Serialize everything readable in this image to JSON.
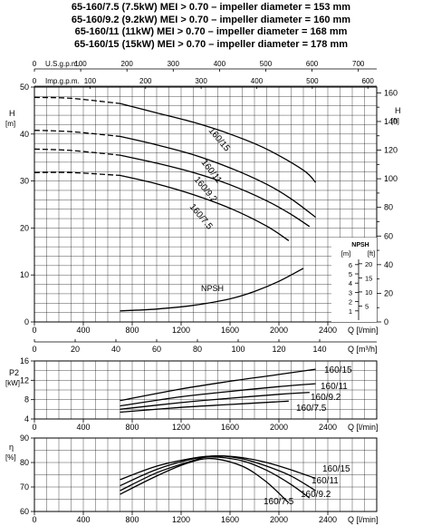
{
  "header_lines": [
    "65-160/7.5 (7.5kW) MEI > 0.70 – impeller diameter = 153 mm",
    "65-160/9.2 (9.2kW) MEI > 0.70 – impeller diameter = 160 mm",
    "65-160/11  (11kW) MEI > 0.70 – impeller diameter = 168 mm",
    "65-160/15  (15kW) MEI > 0.70 – impeller diameter = 178 mm"
  ],
  "chart_data": [
    {
      "id": "head",
      "type": "line",
      "xlabel": "Q [l/min]",
      "ylabel": "H [m]",
      "right_ylabel": "H [ft]",
      "xlim": [
        0,
        2800
      ],
      "ylim": [
        0,
        50
      ],
      "right_ylim_ft": [
        0,
        164
      ],
      "x_ticks": [
        0,
        400,
        800,
        1200,
        1600,
        2000,
        2400
      ],
      "y_ticks": [
        0,
        10,
        20,
        30,
        40,
        50
      ],
      "right_ticks": [
        0,
        20,
        40,
        60,
        80,
        100,
        120,
        140,
        160
      ],
      "bottom_axis2": {
        "label": "Q [m³/h]",
        "factor": 16.6667,
        "ticks": [
          0,
          20,
          40,
          60,
          80,
          100,
          120,
          140
        ]
      },
      "top_axis1": {
        "label": "Imp.g.p.m.",
        "factor": 4.546,
        "ticks": [
          0,
          100,
          200,
          300,
          400,
          500,
          600
        ]
      },
      "top_axis2": {
        "label": "U.S.g.p.m.",
        "factor": 3.785,
        "ticks": [
          0,
          100,
          200,
          300,
          400,
          500,
          600,
          700
        ]
      },
      "grid": true,
      "series": [
        {
          "name": "160/15",
          "dashed_x": [
            0,
            300,
            700
          ],
          "x": [
            700,
            1000,
            1300,
            1600,
            1900,
            2200,
            2300
          ],
          "y": [
            46.5,
            44.5,
            42.5,
            40,
            36.8,
            32.3,
            29.7
          ],
          "dashed_y": [
            47.8,
            47.6,
            46.5
          ]
        },
        {
          "name": "160/11",
          "dashed_x": [
            0,
            300,
            700
          ],
          "x": [
            700,
            1000,
            1300,
            1600,
            1900,
            2100,
            2300
          ],
          "y": [
            39.5,
            37.7,
            35.6,
            32.8,
            29.3,
            26.2,
            22.3
          ],
          "dashed_y": [
            40.8,
            40.5,
            39.5
          ]
        },
        {
          "name": "160/9.2",
          "dashed_x": [
            0,
            300,
            700
          ],
          "x": [
            700,
            1000,
            1300,
            1600,
            1900,
            2100,
            2250
          ],
          "y": [
            35.5,
            33.8,
            31.8,
            29.2,
            25.8,
            22.9,
            20.3
          ],
          "dashed_y": [
            36.8,
            36.5,
            35.5
          ]
        },
        {
          "name": "160/7.5",
          "dashed_x": [
            0,
            300,
            700
          ],
          "x": [
            700,
            1000,
            1300,
            1600,
            1900,
            2080
          ],
          "y": [
            31.2,
            29.4,
            27.1,
            24.2,
            20.4,
            17.3
          ],
          "dashed_y": [
            31.8,
            31.8,
            31.2
          ]
        },
        {
          "name": "NPSH",
          "axis": "npsh",
          "x": [
            700,
            1000,
            1300,
            1600,
            1800,
            2000,
            2200
          ],
          "y": [
            1.0,
            1.2,
            1.6,
            2.3,
            3.1,
            4.2,
            5.6
          ]
        }
      ],
      "npsh_axis": {
        "label_m": "[m]",
        "label_ft": "[ft]",
        "title": "NPSH",
        "m_ticks": [
          1,
          2,
          3,
          4,
          5,
          6
        ],
        "ft_ticks": [
          5,
          10,
          15,
          20
        ]
      }
    },
    {
      "id": "power",
      "type": "line",
      "xlabel": "Q [l/min]",
      "ylabel": "P2 [kW]",
      "xlim": [
        0,
        2800
      ],
      "ylim": [
        4,
        16
      ],
      "x_ticks": [
        0,
        400,
        800,
        1200,
        1600,
        2000,
        2400
      ],
      "y_ticks": [
        4,
        8,
        12,
        16
      ],
      "grid": true,
      "series": [
        {
          "name": "160/15",
          "x": [
            700,
            1200,
            1600,
            2000,
            2300
          ],
          "y": [
            7.8,
            10.2,
            11.8,
            13.2,
            14.3
          ]
        },
        {
          "name": "160/11",
          "x": [
            700,
            1200,
            1600,
            2000,
            2300
          ],
          "y": [
            6.7,
            8.6,
            9.7,
            10.7,
            11.3
          ]
        },
        {
          "name": "160/9.2",
          "x": [
            700,
            1200,
            1600,
            2000,
            2250
          ],
          "y": [
            6.0,
            7.4,
            8.3,
            9.1,
            9.5
          ]
        },
        {
          "name": "160/7.5",
          "x": [
            700,
            1200,
            1600,
            1950,
            2080
          ],
          "y": [
            5.4,
            6.4,
            7.0,
            7.5,
            7.7
          ]
        }
      ]
    },
    {
      "id": "efficiency",
      "type": "line",
      "xlabel": "Q [l/min]",
      "ylabel": "η [%]",
      "xlim": [
        0,
        2800
      ],
      "ylim": [
        60,
        90
      ],
      "x_ticks": [
        0,
        400,
        800,
        1200,
        1600,
        2000,
        2400
      ],
      "y_ticks": [
        60,
        70,
        80,
        90
      ],
      "grid": true,
      "series": [
        {
          "name": "160/15",
          "x": [
            700,
            1000,
            1300,
            1500,
            1700,
            1900,
            2100,
            2300
          ],
          "y": [
            73,
            78.5,
            81.8,
            82.7,
            82.0,
            80.0,
            77.0,
            73.5
          ]
        },
        {
          "name": "160/11",
          "x": [
            700,
            1000,
            1300,
            1500,
            1700,
            1900,
            2100,
            2300
          ],
          "y": [
            70.5,
            77.2,
            81.5,
            82.7,
            81.5,
            78.5,
            74.5,
            68.5
          ]
        },
        {
          "name": "160/9.2",
          "x": [
            700,
            1000,
            1300,
            1450,
            1700,
            1900,
            2100,
            2250
          ],
          "y": [
            68.5,
            75.8,
            80.8,
            82.3,
            80.7,
            76.8,
            71.0,
            65.5
          ]
        },
        {
          "name": "160/7.5",
          "x": [
            700,
            1000,
            1250,
            1450,
            1700,
            1900,
            2080
          ],
          "y": [
            67,
            74.5,
            79.7,
            81.6,
            78.5,
            72.0,
            63.5
          ]
        }
      ]
    }
  ],
  "labels": {
    "h_unit_top": "H",
    "h_unit_bottom": "[m]",
    "hft_top": "H",
    "hft_bottom": "[ft]",
    "p2_top": "P2",
    "p2_bottom": "[kW]",
    "eta_top": "η",
    "eta_bottom": "[%]",
    "q_lmin": "Q [l/min]",
    "q_m3h": "Q [m³/h]",
    "npsh_label": "NPSH"
  }
}
